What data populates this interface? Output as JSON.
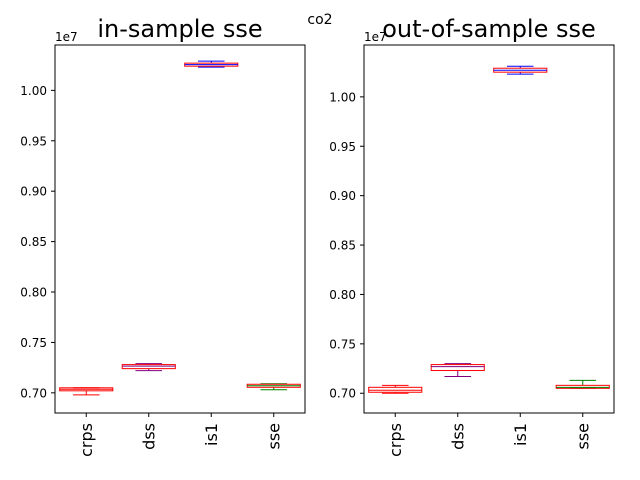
{
  "figure": {
    "suptitle": "co2"
  },
  "colors": {
    "crps": "#ff0000",
    "dss": "#800080",
    "is1": "#0000ff",
    "sse": "#008000",
    "box_edge": "#ff0000",
    "median": "#ffa500"
  },
  "chart_data": [
    {
      "type": "box",
      "title": "in-sample sse",
      "offset_label": "1e7",
      "categories": [
        "crps",
        "dss",
        "is1",
        "sse"
      ],
      "ylim": [
        0.68,
        1.045
      ],
      "yticks": [
        0.7,
        0.75,
        0.8,
        0.85,
        0.9,
        0.95,
        1.0
      ],
      "yticklabels": [
        "0.70",
        "0.75",
        "0.80",
        "0.85",
        "0.90",
        "0.95",
        "1.00"
      ],
      "boxes": [
        {
          "name": "crps",
          "whislo": 0.698,
          "q1": 0.702,
          "med": 0.7035,
          "q3": 0.705,
          "whishi": 0.705
        },
        {
          "name": "dss",
          "whislo": 0.722,
          "q1": 0.724,
          "med": 0.7265,
          "q3": 0.728,
          "whishi": 0.729
        },
        {
          "name": "is1",
          "whislo": 1.023,
          "q1": 1.024,
          "med": 1.0255,
          "q3": 1.027,
          "whishi": 1.029
        },
        {
          "name": "sse",
          "whislo": 0.703,
          "q1": 0.7055,
          "med": 0.707,
          "q3": 0.7085,
          "whishi": 0.709
        }
      ]
    },
    {
      "type": "box",
      "title": "out-of-sample sse",
      "offset_label": "1e7",
      "categories": [
        "crps",
        "dss",
        "is1",
        "sse"
      ],
      "ylim": [
        0.68,
        1.0525
      ],
      "yticks": [
        0.7,
        0.75,
        0.8,
        0.85,
        0.9,
        0.95,
        1.0
      ],
      "yticklabels": [
        "0.70",
        "0.75",
        "0.80",
        "0.85",
        "0.90",
        "0.95",
        "1.00"
      ],
      "boxes": [
        {
          "name": "crps",
          "whislo": 0.7,
          "q1": 0.701,
          "med": 0.703,
          "q3": 0.706,
          "whishi": 0.708
        },
        {
          "name": "dss",
          "whislo": 0.717,
          "q1": 0.723,
          "med": 0.727,
          "q3": 0.729,
          "whishi": 0.73
        },
        {
          "name": "is1",
          "whislo": 1.023,
          "q1": 1.025,
          "med": 1.027,
          "q3": 1.029,
          "whishi": 1.031
        },
        {
          "name": "sse",
          "whislo": 0.705,
          "q1": 0.705,
          "med": 0.706,
          "q3": 0.708,
          "whishi": 0.713
        }
      ]
    }
  ]
}
